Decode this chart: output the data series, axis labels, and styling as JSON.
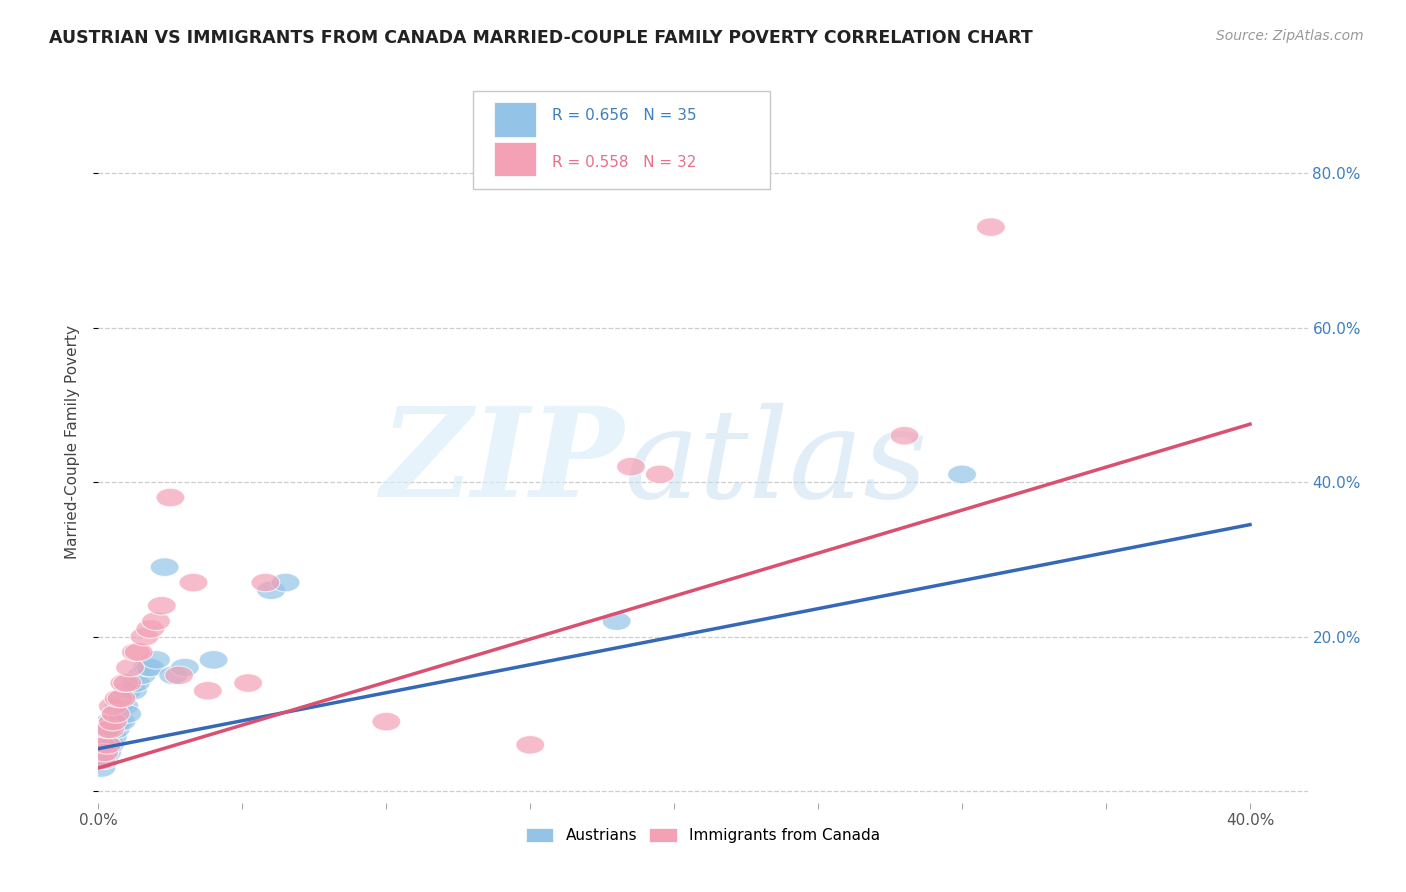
{
  "title": "AUSTRIAN VS IMMIGRANTS FROM CANADA MARRIED-COUPLE FAMILY POVERTY CORRELATION CHART",
  "source": "Source: ZipAtlas.com",
  "ylabel": "Married-Couple Family Poverty",
  "xlim": [
    0.0,
    0.42
  ],
  "ylim": [
    -0.015,
    0.92
  ],
  "blue_color": "#93c4e8",
  "pink_color": "#f4a0b5",
  "blue_line_color": "#3569b8",
  "pink_line_color": "#d95070",
  "background_color": "#ffffff",
  "legend_bottom1": "Austrians",
  "legend_bottom2": "Immigrants from Canada",
  "blue_line_x0": 0.0,
  "blue_line_y0": 0.055,
  "blue_line_x1": 0.4,
  "blue_line_y1": 0.345,
  "pink_line_x0": 0.0,
  "pink_line_y0": 0.03,
  "pink_line_x1": 0.4,
  "pink_line_y1": 0.475,
  "austrians_x": [
    0.001,
    0.001,
    0.001,
    0.002,
    0.002,
    0.002,
    0.003,
    0.003,
    0.004,
    0.004,
    0.005,
    0.005,
    0.006,
    0.006,
    0.007,
    0.007,
    0.008,
    0.008,
    0.009,
    0.01,
    0.01,
    0.012,
    0.013,
    0.015,
    0.017,
    0.018,
    0.02,
    0.023,
    0.026,
    0.03,
    0.04,
    0.06,
    0.065,
    0.18,
    0.3
  ],
  "austrians_y": [
    0.03,
    0.05,
    0.06,
    0.04,
    0.06,
    0.07,
    0.05,
    0.08,
    0.06,
    0.09,
    0.07,
    0.09,
    0.08,
    0.1,
    0.09,
    0.11,
    0.09,
    0.12,
    0.11,
    0.1,
    0.13,
    0.13,
    0.14,
    0.15,
    0.16,
    0.16,
    0.17,
    0.29,
    0.15,
    0.16,
    0.17,
    0.26,
    0.27,
    0.22,
    0.41
  ],
  "canada_x": [
    0.001,
    0.001,
    0.002,
    0.003,
    0.003,
    0.004,
    0.005,
    0.005,
    0.006,
    0.007,
    0.008,
    0.009,
    0.01,
    0.011,
    0.013,
    0.014,
    0.016,
    0.018,
    0.02,
    0.022,
    0.025,
    0.028,
    0.033,
    0.038,
    0.052,
    0.058,
    0.1,
    0.15,
    0.185,
    0.195,
    0.28,
    0.31
  ],
  "canada_y": [
    0.04,
    0.06,
    0.05,
    0.06,
    0.08,
    0.08,
    0.09,
    0.11,
    0.1,
    0.12,
    0.12,
    0.14,
    0.14,
    0.16,
    0.18,
    0.18,
    0.2,
    0.21,
    0.22,
    0.24,
    0.38,
    0.15,
    0.27,
    0.13,
    0.14,
    0.27,
    0.09,
    0.06,
    0.42,
    0.41,
    0.46,
    0.73
  ],
  "ytick_positions": [
    0.0,
    0.2,
    0.4,
    0.6,
    0.8
  ],
  "xtick_positions": [
    0.0,
    0.05,
    0.1,
    0.15,
    0.2,
    0.25,
    0.3,
    0.35,
    0.4
  ]
}
